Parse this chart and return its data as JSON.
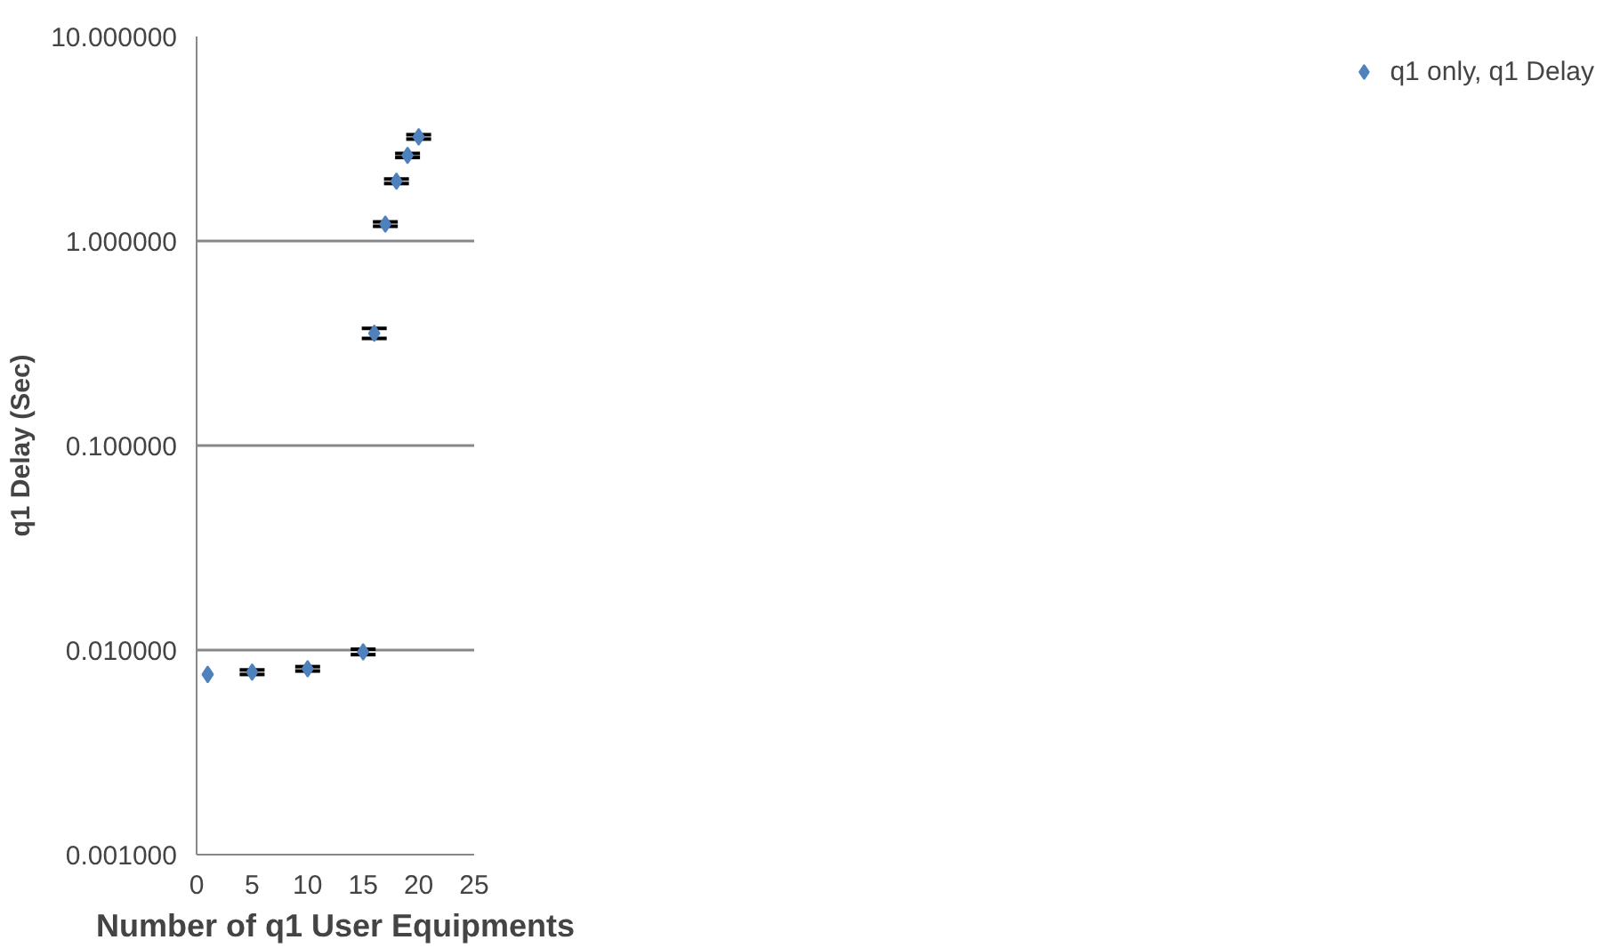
{
  "chart_data": {
    "type": "scatter",
    "xlabel": "Number of q1 User Equipments",
    "ylabel": "q1 Delay (Sec)",
    "x": [
      1,
      5,
      10,
      15,
      16,
      17,
      18,
      19,
      20
    ],
    "series": [
      {
        "name": "q1 only, q1 Delay",
        "color": "#4f81bd",
        "values": [
          0.0076,
          0.0078,
          0.0081,
          0.0098,
          0.354,
          1.21,
          1.96,
          2.62,
          3.23
        ],
        "errors": [
          null,
          0.0002,
          0.0002,
          0.0003,
          0.02,
          0.03,
          0.05,
          0.06,
          0.08
        ]
      }
    ],
    "log": "y",
    "xlim": [
      0,
      25
    ],
    "xticks": [
      0,
      5,
      10,
      15,
      20,
      25
    ],
    "ylim": [
      0.001,
      10
    ],
    "yticks": [
      {
        "value": 0.001,
        "label": "0.001000"
      },
      {
        "value": 0.01,
        "label": "0.010000"
      },
      {
        "value": 0.1,
        "label": "0.100000"
      },
      {
        "value": 1,
        "label": "1.000000"
      },
      {
        "value": 10,
        "label": "10.000000"
      }
    ],
    "grid": "y",
    "legend": "right",
    "marker": "diamond"
  }
}
